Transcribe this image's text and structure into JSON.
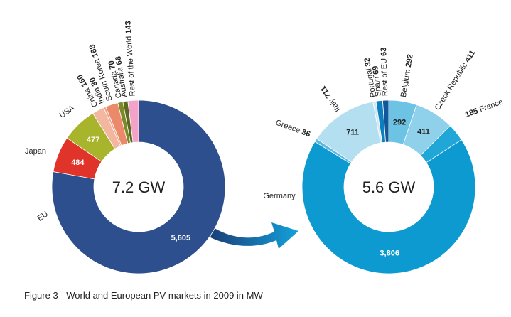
{
  "caption": "Figure 3 - World and European PV markets in 2009 in MW",
  "colors": {
    "arrow": "#1a6fb3",
    "text_dark": "#222222",
    "text_light": "#ffffff"
  },
  "chart_data": [
    {
      "type": "pie",
      "center_label": "7.2 GW",
      "slices": [
        {
          "name": "EU",
          "value": 5605,
          "value_label": "5,605",
          "color": "#2e4f8e",
          "label_style": "outside",
          "inner_text": "light"
        },
        {
          "name": "Japan",
          "value": 484,
          "value_label": "484",
          "color": "#e0332a",
          "label_style": "outside",
          "inner_text": "light"
        },
        {
          "name": "USA",
          "value": 477,
          "value_label": "477",
          "color": "#a9b42d",
          "label_style": "outside",
          "inner_text": "light"
        },
        {
          "name": "China",
          "value": 160,
          "value_label": "160",
          "color": "#f3b79f",
          "label_style": "radial"
        },
        {
          "name": "India",
          "value": 30,
          "value_label": "30",
          "color": "#f0a58a",
          "label_style": "radial"
        },
        {
          "name": "South Korea",
          "value": 168,
          "value_label": "168",
          "color": "#eb8a6b",
          "label_style": "radial"
        },
        {
          "name": "Canada",
          "value": 70,
          "value_label": "70",
          "color": "#7a8a2a",
          "label_style": "radial"
        },
        {
          "name": "Australia",
          "value": 66,
          "value_label": "66",
          "color": "#5b6a1e",
          "label_style": "radial"
        },
        {
          "name": "Rest of the World",
          "value": 143,
          "value_label": "143",
          "color": "#f2a3c7",
          "label_style": "radial"
        }
      ]
    },
    {
      "type": "pie",
      "center_label": "5.6 GW",
      "slices": [
        {
          "name": "Belgium",
          "value": 292,
          "value_label": "292",
          "color": "#6cc3e3",
          "label_style": "radial",
          "inner_text": "dark"
        },
        {
          "name": "Czeck Republic",
          "value": 411,
          "value_label": "411",
          "color": "#8fd0ea",
          "label_style": "radial",
          "inner_text": "dark"
        },
        {
          "name": "France",
          "value": 185,
          "value_label": "185",
          "color": "#20a7d8",
          "label_style": "outside-right"
        },
        {
          "name": "Germany",
          "value": 3806,
          "value_label": "3,806",
          "color": "#0d9ad0",
          "label_style": "outside",
          "inner_text": "light"
        },
        {
          "name": "Greece",
          "value": 36,
          "value_label": "36",
          "color": "#5fb8e0",
          "label_style": "outside-left"
        },
        {
          "name": "Italy",
          "value": 711,
          "value_label": "711",
          "color": "#b4dff0",
          "label_style": "radial",
          "inner_text": "dark"
        },
        {
          "name": "Portugal",
          "value": 32,
          "value_label": "32",
          "color": "#cde9f5",
          "label_style": "radial"
        },
        {
          "name": "Spain",
          "value": 69,
          "value_label": "69",
          "color": "#0d7fbf",
          "label_style": "radial"
        },
        {
          "name": "Rest of EU",
          "value": 63,
          "value_label": "63",
          "color": "#14569a",
          "label_style": "radial"
        }
      ]
    }
  ]
}
